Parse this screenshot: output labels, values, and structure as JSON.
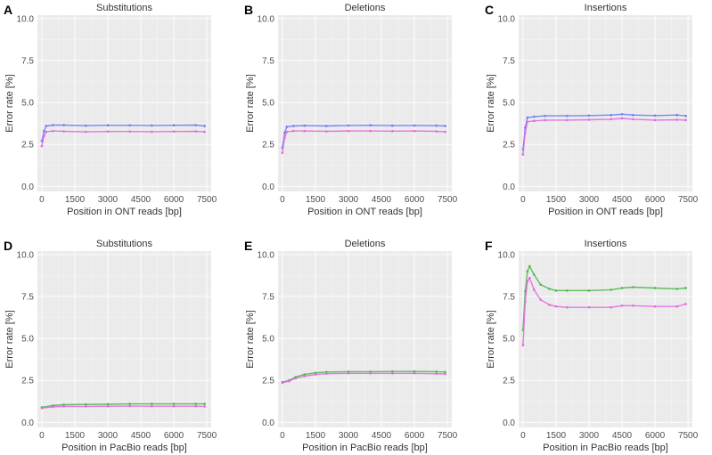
{
  "figure": {
    "panels": [
      {
        "letter": "A",
        "title": "Substitutions",
        "xlabel": "Position in ONT reads [bp]",
        "ylabel": "Error rate [%]"
      },
      {
        "letter": "B",
        "title": "Deletions",
        "xlabel": "Position in ONT reads [bp]",
        "ylabel": "Error rate [%]"
      },
      {
        "letter": "C",
        "title": "Insertions",
        "xlabel": "Position in ONT reads [bp]",
        "ylabel": "Error rate [%]"
      },
      {
        "letter": "D",
        "title": "Substitutions",
        "xlabel": "Position in PacBio reads [bp]",
        "ylabel": "Error rate [%]"
      },
      {
        "letter": "E",
        "title": "Deletions",
        "xlabel": "Position in PacBio reads [bp]",
        "ylabel": "Error rate [%]"
      },
      {
        "letter": "F",
        "title": "Insertions",
        "xlabel": "Position in PacBio reads [bp]",
        "ylabel": "Error rate [%]"
      }
    ],
    "colors": {
      "blue": "#6a7ff5",
      "magenta": "#e36ae3",
      "green": "#4fb84f"
    }
  },
  "chart_data": [
    {
      "type": "line",
      "panel": "A",
      "title": "Substitutions",
      "xlabel": "Position in ONT reads [bp]",
      "ylabel": "Error rate [%]",
      "xlim": [
        -200,
        7700
      ],
      "ylim": [
        -0.3,
        10.2
      ],
      "xticks": [
        "0",
        "1500",
        "3000",
        "4500",
        "6000",
        "7500"
      ],
      "yticks": [
        "0.0",
        "2.5",
        "5.0",
        "7.5",
        "10.0"
      ],
      "series": [
        {
          "name": "blue",
          "color": "#6a7ff5",
          "x": [
            0,
            100,
            200,
            500,
            1000,
            2000,
            3000,
            4000,
            5000,
            6000,
            7000,
            7400
          ],
          "y": [
            2.7,
            3.3,
            3.6,
            3.65,
            3.65,
            3.62,
            3.64,
            3.64,
            3.63,
            3.64,
            3.65,
            3.6
          ]
        },
        {
          "name": "magenta",
          "color": "#e36ae3",
          "x": [
            0,
            100,
            200,
            500,
            1000,
            2000,
            3000,
            4000,
            5000,
            6000,
            7000,
            7400
          ],
          "y": [
            2.4,
            3.0,
            3.25,
            3.3,
            3.28,
            3.25,
            3.27,
            3.27,
            3.26,
            3.27,
            3.28,
            3.25
          ]
        }
      ]
    },
    {
      "type": "line",
      "panel": "B",
      "title": "Deletions",
      "xlabel": "Position in ONT reads [bp]",
      "ylabel": "Error rate [%]",
      "xlim": [
        -200,
        7700
      ],
      "ylim": [
        -0.3,
        10.2
      ],
      "xticks": [
        "0",
        "1500",
        "3000",
        "4500",
        "6000",
        "7500"
      ],
      "yticks": [
        "0.0",
        "2.5",
        "5.0",
        "7.5",
        "10.0"
      ],
      "series": [
        {
          "name": "blue",
          "color": "#6a7ff5",
          "x": [
            0,
            100,
            200,
            500,
            1000,
            2000,
            3000,
            4000,
            5000,
            6000,
            7000,
            7400
          ],
          "y": [
            2.3,
            3.2,
            3.55,
            3.6,
            3.62,
            3.6,
            3.63,
            3.64,
            3.62,
            3.63,
            3.62,
            3.6
          ]
        },
        {
          "name": "magenta",
          "color": "#e36ae3",
          "x": [
            0,
            100,
            200,
            500,
            1000,
            2000,
            3000,
            4000,
            5000,
            6000,
            7000,
            7400
          ],
          "y": [
            2.0,
            2.9,
            3.25,
            3.3,
            3.3,
            3.28,
            3.3,
            3.3,
            3.29,
            3.3,
            3.28,
            3.25
          ]
        }
      ]
    },
    {
      "type": "line",
      "panel": "C",
      "title": "Insertions",
      "xlabel": "Position in ONT reads [bp]",
      "ylabel": "Error rate [%]",
      "xlim": [
        -200,
        7700
      ],
      "ylim": [
        -0.3,
        10.2
      ],
      "xticks": [
        "0",
        "1500",
        "3000",
        "4500",
        "6000",
        "7500"
      ],
      "yticks": [
        "0.0",
        "2.5",
        "5.0",
        "7.5",
        "10.0"
      ],
      "series": [
        {
          "name": "blue",
          "color": "#6a7ff5",
          "x": [
            0,
            100,
            200,
            500,
            1000,
            2000,
            3000,
            4000,
            4500,
            5000,
            6000,
            7000,
            7400
          ],
          "y": [
            2.2,
            3.5,
            4.1,
            4.15,
            4.2,
            4.2,
            4.22,
            4.25,
            4.3,
            4.25,
            4.22,
            4.25,
            4.2
          ]
        },
        {
          "name": "magenta",
          "color": "#e36ae3",
          "x": [
            0,
            100,
            200,
            500,
            1000,
            2000,
            3000,
            4000,
            4500,
            5000,
            6000,
            7000,
            7400
          ],
          "y": [
            1.9,
            3.2,
            3.85,
            3.9,
            3.95,
            3.95,
            3.97,
            4.0,
            4.05,
            4.0,
            3.95,
            3.97,
            3.95
          ]
        }
      ]
    },
    {
      "type": "line",
      "panel": "D",
      "title": "Substitutions",
      "xlabel": "Position in PacBio reads [bp]",
      "ylabel": "Error rate [%]",
      "xlim": [
        -200,
        7700
      ],
      "ylim": [
        -0.3,
        10.2
      ],
      "xticks": [
        "0",
        "1500",
        "3000",
        "4500",
        "6000",
        "7500"
      ],
      "yticks": [
        "0.0",
        "2.5",
        "5.0",
        "7.5",
        "10.0"
      ],
      "series": [
        {
          "name": "green",
          "color": "#4fb84f",
          "x": [
            0,
            500,
            1000,
            2000,
            3000,
            4000,
            5000,
            6000,
            7000,
            7400
          ],
          "y": [
            0.9,
            1.0,
            1.05,
            1.07,
            1.08,
            1.1,
            1.1,
            1.1,
            1.1,
            1.1
          ]
        },
        {
          "name": "magenta",
          "color": "#e36ae3",
          "x": [
            0,
            500,
            1000,
            2000,
            3000,
            4000,
            5000,
            6000,
            7000,
            7400
          ],
          "y": [
            0.85,
            0.92,
            0.95,
            0.95,
            0.96,
            0.97,
            0.96,
            0.96,
            0.96,
            0.95
          ]
        }
      ]
    },
    {
      "type": "line",
      "panel": "E",
      "title": "Deletions",
      "xlabel": "Position in PacBio reads [bp]",
      "ylabel": "Error rate [%]",
      "xlim": [
        -200,
        7700
      ],
      "ylim": [
        -0.3,
        10.2
      ],
      "xticks": [
        "0",
        "1500",
        "3000",
        "4500",
        "6000",
        "7500"
      ],
      "yticks": [
        "0.0",
        "2.5",
        "5.0",
        "7.5",
        "10.0"
      ],
      "series": [
        {
          "name": "green",
          "color": "#4fb84f",
          "x": [
            0,
            300,
            600,
            1000,
            1500,
            2000,
            3000,
            4000,
            5000,
            6000,
            7000,
            7400
          ],
          "y": [
            2.4,
            2.5,
            2.7,
            2.85,
            2.95,
            3.0,
            3.02,
            3.02,
            3.03,
            3.03,
            3.02,
            3.0
          ]
        },
        {
          "name": "magenta",
          "color": "#e36ae3",
          "x": [
            0,
            300,
            600,
            1000,
            1500,
            2000,
            3000,
            4000,
            5000,
            6000,
            7000,
            7400
          ],
          "y": [
            2.35,
            2.45,
            2.62,
            2.75,
            2.85,
            2.9,
            2.92,
            2.92,
            2.92,
            2.92,
            2.9,
            2.88
          ]
        }
      ]
    },
    {
      "type": "line",
      "panel": "F",
      "title": "Insertions",
      "xlabel": "Position in PacBio reads [bp]",
      "ylabel": "Error rate [%]",
      "xlim": [
        -200,
        7700
      ],
      "ylim": [
        -0.3,
        10.2
      ],
      "xticks": [
        "0",
        "1500",
        "3000",
        "4500",
        "6000",
        "7500"
      ],
      "yticks": [
        "0.0",
        "2.5",
        "5.0",
        "7.5",
        "10.0"
      ],
      "series": [
        {
          "name": "green",
          "color": "#4fb84f",
          "x": [
            0,
            100,
            200,
            300,
            500,
            800,
            1200,
            1500,
            2000,
            3000,
            4000,
            4500,
            5000,
            6000,
            7000,
            7400
          ],
          "y": [
            5.5,
            7.8,
            9.0,
            9.3,
            8.8,
            8.2,
            7.95,
            7.85,
            7.85,
            7.85,
            7.9,
            8.0,
            8.05,
            8.0,
            7.95,
            8.0
          ]
        },
        {
          "name": "magenta",
          "color": "#e36ae3",
          "x": [
            0,
            100,
            200,
            300,
            500,
            800,
            1200,
            1500,
            2000,
            3000,
            4000,
            4500,
            5000,
            6000,
            7000,
            7400
          ],
          "y": [
            4.6,
            7.2,
            8.4,
            8.6,
            7.9,
            7.3,
            7.0,
            6.9,
            6.85,
            6.85,
            6.85,
            6.95,
            6.95,
            6.9,
            6.9,
            7.05
          ]
        }
      ]
    }
  ]
}
